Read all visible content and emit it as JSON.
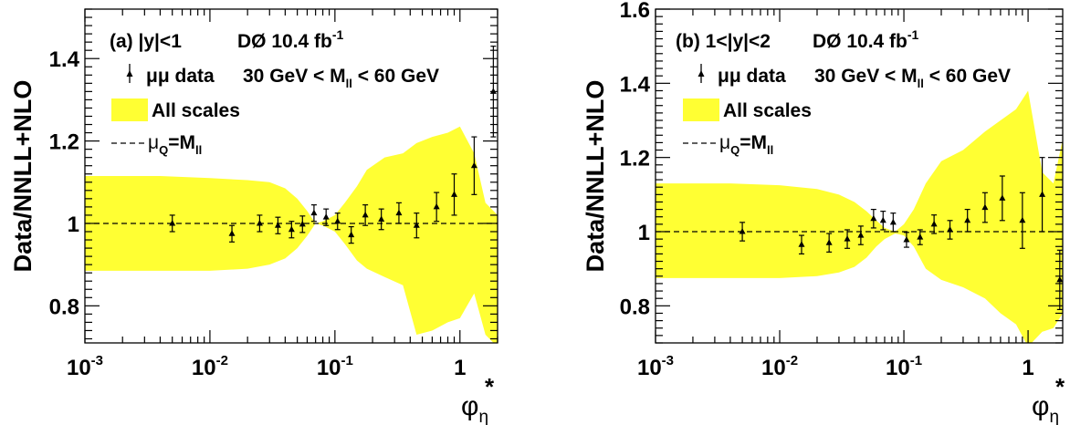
{
  "chart_data": [
    {
      "type": "scatter",
      "panel_label": "(a) |y|<1",
      "experiment": "DØ 10.4 fb",
      "experiment_sup": "-1",
      "ylabel": "Data/NNLL+NLO",
      "xlabel": "φ",
      "xlabel_sub": "η",
      "xlabel_sup": "*",
      "xscale": "log",
      "xlim": [
        0.001,
        2.0
      ],
      "ylim": [
        0.71,
        1.52
      ],
      "xticks": [
        {
          "v": 0.001,
          "b": "10",
          "e": "-3"
        },
        {
          "v": 0.01,
          "b": "10",
          "e": "-2"
        },
        {
          "v": 0.1,
          "b": "10",
          "e": "-1"
        },
        {
          "v": 1,
          "b": "1",
          "e": ""
        }
      ],
      "yticks": [
        {
          "v": 0.8,
          "t": "0.8"
        },
        {
          "v": 1.0,
          "t": "1"
        },
        {
          "v": 1.2,
          "t": "1.2"
        },
        {
          "v": 1.4,
          "t": "1.4"
        }
      ],
      "legend": [
        {
          "kind": "data",
          "label": "μμ data",
          "extra": "30 GeV < M",
          "extra_sub": "ll",
          "extra_tail": " < 60 GeV"
        },
        {
          "kind": "band",
          "label": "All scales"
        },
        {
          "kind": "line",
          "label": "μ",
          "label_sub": "Q",
          "label_tail": "=M",
          "label_sub2": "ll"
        }
      ],
      "reference_line": 1.0,
      "band": {
        "name": "All scales",
        "color": "#ffff33",
        "x": [
          0.001,
          0.004,
          0.01,
          0.02,
          0.03,
          0.04,
          0.05,
          0.06,
          0.07,
          0.08,
          0.1,
          0.12,
          0.15,
          0.18,
          0.25,
          0.35,
          0.45,
          0.6,
          0.8,
          1.0,
          1.3,
          1.6,
          2.0
        ],
        "upper": [
          1.115,
          1.115,
          1.11,
          1.105,
          1.1,
          1.085,
          1.06,
          1.03,
          1.0,
          1.005,
          1.02,
          1.05,
          1.09,
          1.13,
          1.16,
          1.17,
          1.195,
          1.21,
          1.22,
          1.235,
          1.17,
          1.05,
          1.02
        ],
        "lower": [
          0.885,
          0.885,
          0.885,
          0.89,
          0.9,
          0.915,
          0.94,
          0.97,
          1.0,
          0.995,
          0.98,
          0.95,
          0.91,
          0.89,
          0.87,
          0.85,
          0.73,
          0.74,
          0.76,
          0.77,
          0.83,
          0.73,
          0.7
        ]
      },
      "points": {
        "x": [
          0.005,
          0.015,
          0.025,
          0.035,
          0.045,
          0.055,
          0.068,
          0.085,
          0.105,
          0.135,
          0.175,
          0.235,
          0.325,
          0.45,
          0.65,
          0.9,
          1.3,
          1.85
        ],
        "y": [
          1.0,
          0.975,
          1.0,
          0.995,
          0.985,
          0.998,
          1.025,
          1.015,
          1.005,
          0.972,
          1.02,
          1.01,
          1.025,
          0.995,
          1.04,
          1.07,
          1.14,
          1.32
        ],
        "err": [
          0.02,
          0.02,
          0.02,
          0.02,
          0.02,
          0.02,
          0.02,
          0.02,
          0.02,
          0.02,
          0.025,
          0.025,
          0.025,
          0.03,
          0.035,
          0.05,
          0.07,
          0.11
        ]
      }
    },
    {
      "type": "scatter",
      "panel_label": "(b) 1<|y|<2",
      "experiment": "DØ 10.4 fb",
      "experiment_sup": "-1",
      "ylabel": "Data/NNLL+NLO",
      "xlabel": "φ",
      "xlabel_sub": "η",
      "xlabel_sup": "*",
      "xscale": "log",
      "xlim": [
        0.001,
        1.9
      ],
      "ylim": [
        0.7,
        1.6
      ],
      "xticks": [
        {
          "v": 0.001,
          "b": "10",
          "e": "-3"
        },
        {
          "v": 0.01,
          "b": "10",
          "e": "-2"
        },
        {
          "v": 0.1,
          "b": "10",
          "e": "-1"
        },
        {
          "v": 1,
          "b": "1",
          "e": ""
        }
      ],
      "yticks": [
        {
          "v": 0.8,
          "t": "0.8"
        },
        {
          "v": 1.0,
          "t": "1"
        },
        {
          "v": 1.2,
          "t": "1.2"
        },
        {
          "v": 1.4,
          "t": "1.4"
        },
        {
          "v": 1.6,
          "t": "1.6"
        }
      ],
      "legend": [
        {
          "kind": "data",
          "label": "μμ data",
          "extra": "30 GeV < M",
          "extra_sub": "ll",
          "extra_tail": " < 60 GeV"
        },
        {
          "kind": "band",
          "label": "All scales"
        },
        {
          "kind": "line",
          "label": "μ",
          "label_sub": "Q",
          "label_tail": "=M",
          "label_sub2": "ll"
        }
      ],
      "reference_line": 1.0,
      "band": {
        "name": "All scales",
        "color": "#ffff33",
        "x": [
          0.001,
          0.004,
          0.01,
          0.02,
          0.03,
          0.04,
          0.05,
          0.06,
          0.07,
          0.085,
          0.1,
          0.12,
          0.15,
          0.2,
          0.3,
          0.45,
          0.6,
          0.8,
          1.0,
          1.3,
          1.6,
          1.9
        ],
        "upper": [
          1.13,
          1.13,
          1.125,
          1.115,
          1.1,
          1.08,
          1.055,
          1.03,
          1.01,
          1.0,
          1.02,
          1.06,
          1.13,
          1.19,
          1.22,
          1.27,
          1.3,
          1.33,
          1.38,
          1.16,
          1.13,
          1.25
        ],
        "lower": [
          0.875,
          0.875,
          0.875,
          0.88,
          0.89,
          0.905,
          0.93,
          0.96,
          0.98,
          0.995,
          0.99,
          0.96,
          0.9,
          0.87,
          0.85,
          0.82,
          0.78,
          0.75,
          0.69,
          0.73,
          0.74,
          0.78
        ]
      },
      "points": {
        "x": [
          0.005,
          0.015,
          0.025,
          0.035,
          0.045,
          0.057,
          0.068,
          0.082,
          0.105,
          0.135,
          0.175,
          0.235,
          0.325,
          0.45,
          0.62,
          0.9,
          1.3,
          1.8
        ],
        "y": [
          1.0,
          0.965,
          0.97,
          0.98,
          0.99,
          1.035,
          1.03,
          1.025,
          0.978,
          0.985,
          1.02,
          1.005,
          1.03,
          1.065,
          1.09,
          1.03,
          1.1,
          0.87
        ],
        "err": [
          0.025,
          0.025,
          0.025,
          0.025,
          0.025,
          0.025,
          0.025,
          0.025,
          0.02,
          0.02,
          0.025,
          0.025,
          0.03,
          0.04,
          0.06,
          0.075,
          0.1,
          0.08
        ]
      }
    }
  ]
}
